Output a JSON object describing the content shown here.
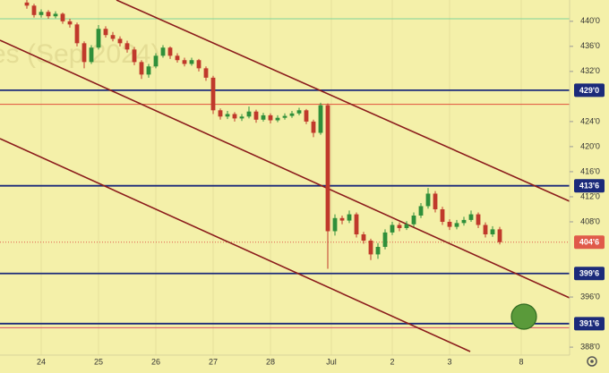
{
  "chart_data": {
    "type": "candlestick",
    "watermark": "es (Sep 2024)",
    "xlim": [
      -3.75,
      75.75
    ],
    "ylim": [
      386.3,
      443.4
    ],
    "xticks": [
      {
        "value": 2,
        "label": "24"
      },
      {
        "value": 10,
        "label": "25"
      },
      {
        "value": 18,
        "label": "26"
      },
      {
        "value": 26,
        "label": "27"
      },
      {
        "value": 34,
        "label": "28"
      },
      {
        "value": 42.5,
        "label": "Jul"
      },
      {
        "value": 51,
        "label": "2"
      },
      {
        "value": 59,
        "label": "3"
      },
      {
        "value": 69,
        "label": "8"
      }
    ],
    "yticks": [
      {
        "value": 440,
        "label": "440'0"
      },
      {
        "value": 436,
        "label": "436'0"
      },
      {
        "value": 432,
        "label": "432'0"
      },
      {
        "value": 424,
        "label": "424'0"
      },
      {
        "value": 420,
        "label": "420'0"
      },
      {
        "value": 416,
        "label": "416'0"
      },
      {
        "value": 412,
        "label": "412'0"
      },
      {
        "value": 408,
        "label": "408'0"
      },
      {
        "value": 396,
        "label": "396'0"
      },
      {
        "value": 388,
        "label": "388'0"
      }
    ],
    "grid": true,
    "up_color": "#2f8f3a",
    "down_color": "#c0392b",
    "levels": [
      {
        "value": 429,
        "label": "429'0",
        "color": "#1b2a7a"
      },
      {
        "value": 413.75,
        "label": "413'6",
        "color": "#1b2a7a"
      },
      {
        "value": 399.75,
        "label": "399'6",
        "color": "#1b2a7a"
      },
      {
        "value": 391.75,
        "label": "391'6",
        "color": "#1b2a7a"
      }
    ],
    "lines": [
      {
        "value": 440.4,
        "color": "#7fd39a"
      },
      {
        "value": 426.75,
        "color": "#e0503a"
      },
      {
        "value": 391.1,
        "color": "#d9506a"
      }
    ],
    "last_price": {
      "value": 404.75,
      "label": "404'6",
      "color": "#e05a4a"
    },
    "candles": [
      [
        443.0,
        443.4,
        442.0,
        442.5
      ],
      [
        442.5,
        442.8,
        440.6,
        441.0
      ],
      [
        441.0,
        441.9,
        440.6,
        441.5
      ],
      [
        441.5,
        441.8,
        440.4,
        440.8
      ],
      [
        440.8,
        441.6,
        440.5,
        441.2
      ],
      [
        441.2,
        441.4,
        439.6,
        440.0
      ],
      [
        440.0,
        440.4,
        439.0,
        439.5
      ],
      [
        439.5,
        439.8,
        436.0,
        436.5
      ],
      [
        436.5,
        436.8,
        432.5,
        433.5
      ],
      [
        433.5,
        436.2,
        433.2,
        435.8
      ],
      [
        435.8,
        439.4,
        435.5,
        438.8
      ],
      [
        438.8,
        439.2,
        437.4,
        437.8
      ],
      [
        437.8,
        438.3,
        436.8,
        437.2
      ],
      [
        437.2,
        437.6,
        436.0,
        436.5
      ],
      [
        436.5,
        436.9,
        435.0,
        435.5
      ],
      [
        435.5,
        435.9,
        433.0,
        433.5
      ],
      [
        433.5,
        433.8,
        430.8,
        431.5
      ],
      [
        431.5,
        433.2,
        431.0,
        432.8
      ],
      [
        432.8,
        434.9,
        432.5,
        434.5
      ],
      [
        434.5,
        436.2,
        434.2,
        435.8
      ],
      [
        435.8,
        436.0,
        434.0,
        434.5
      ],
      [
        434.5,
        434.9,
        433.4,
        433.8
      ],
      [
        433.8,
        434.2,
        432.8,
        433.2
      ],
      [
        433.2,
        434.2,
        432.9,
        433.8
      ],
      [
        433.8,
        434.0,
        432.0,
        432.5
      ],
      [
        432.5,
        432.8,
        430.5,
        431.0
      ],
      [
        431.0,
        431.3,
        425.2,
        425.8
      ],
      [
        425.8,
        426.1,
        424.3,
        424.8
      ],
      [
        424.8,
        425.7,
        424.4,
        425.2
      ],
      [
        425.2,
        425.5,
        424.0,
        424.5
      ],
      [
        424.5,
        425.2,
        424.1,
        424.8
      ],
      [
        424.8,
        426.4,
        424.5,
        425.6
      ],
      [
        425.6,
        425.9,
        423.8,
        424.3
      ],
      [
        424.3,
        425.4,
        424.0,
        425.0
      ],
      [
        425.0,
        425.3,
        423.7,
        424.2
      ],
      [
        424.2,
        425.0,
        423.9,
        424.6
      ],
      [
        424.6,
        425.3,
        424.3,
        424.9
      ],
      [
        424.9,
        425.7,
        424.6,
        425.3
      ],
      [
        425.3,
        426.2,
        425.0,
        425.8
      ],
      [
        425.8,
        426.0,
        423.6,
        424.0
      ],
      [
        424.0,
        424.3,
        421.5,
        422.2
      ],
      [
        422.2,
        427.0,
        421.9,
        426.6
      ],
      [
        426.6,
        426.9,
        400.5,
        406.5
      ],
      [
        406.5,
        409.2,
        405.8,
        408.6
      ],
      [
        408.6,
        409.0,
        407.6,
        408.2
      ],
      [
        408.2,
        409.8,
        407.8,
        409.2
      ],
      [
        409.2,
        409.5,
        405.5,
        406.0
      ],
      [
        406.0,
        406.4,
        404.5,
        405.0
      ],
      [
        405.0,
        405.3,
        401.9,
        402.8
      ],
      [
        402.8,
        404.6,
        402.1,
        404.0
      ],
      [
        404.0,
        406.8,
        403.6,
        406.3
      ],
      [
        406.3,
        408.0,
        405.9,
        407.5
      ],
      [
        407.5,
        407.9,
        406.5,
        407.0
      ],
      [
        407.0,
        408.1,
        406.7,
        407.6
      ],
      [
        407.6,
        409.5,
        407.2,
        409.0
      ],
      [
        409.0,
        411.0,
        408.6,
        410.5
      ],
      [
        410.5,
        413.4,
        410.1,
        412.5
      ],
      [
        412.5,
        412.9,
        409.5,
        410.0
      ],
      [
        410.0,
        410.4,
        407.5,
        408.0
      ],
      [
        408.0,
        408.4,
        406.7,
        407.2
      ],
      [
        407.2,
        408.3,
        406.8,
        407.8
      ],
      [
        407.8,
        408.8,
        407.4,
        408.3
      ],
      [
        408.3,
        409.8,
        408.0,
        409.2
      ],
      [
        409.2,
        409.5,
        407.0,
        407.5
      ],
      [
        407.5,
        407.9,
        405.5,
        406.0
      ],
      [
        406.0,
        407.3,
        405.6,
        406.8
      ],
      [
        406.8,
        407.2,
        404.4,
        404.75
      ]
    ]
  }
}
